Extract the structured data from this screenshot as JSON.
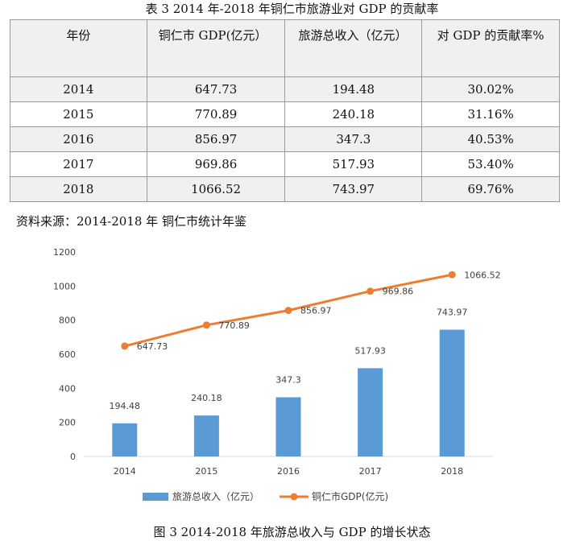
{
  "table": {
    "title": "表 3    2014 年-2018 年铜仁市旅游业对 GDP 的贡献率",
    "headers": [
      "年份",
      "铜仁市 GDP(亿元）",
      "旅游总收入（亿元）",
      "对 GDP 的贡献率%"
    ],
    "rows": [
      [
        "2014",
        "647.73",
        "194.48",
        "30.02%"
      ],
      [
        "2015",
        "770.89",
        "240.18",
        "31.16%"
      ],
      [
        "2016",
        "856.97",
        "347.3",
        "40.53%"
      ],
      [
        "2017",
        "969.86",
        "517.93",
        "53.40%"
      ],
      [
        "2018",
        "1066.52",
        "743.97",
        "69.76%"
      ]
    ],
    "source": "资料来源：2014-2018 年 铜仁市统计年鉴"
  },
  "chart_data": {
    "type": "bar",
    "categories": [
      "2014",
      "2015",
      "2016",
      "2017",
      "2018"
    ],
    "series": [
      {
        "name": "旅游总收入（亿元）",
        "type": "bar",
        "color": "#5b9bd5",
        "values": [
          194.48,
          240.18,
          347.3,
          517.93,
          743.97
        ],
        "labels": [
          "194.48",
          "240.18",
          "347.3",
          "517.93",
          "743.97"
        ]
      },
      {
        "name": "铜仁市GDP(亿元)",
        "type": "line",
        "color": "#ed7d31",
        "values": [
          647.73,
          770.89,
          856.97,
          969.86,
          1066.52
        ],
        "labels": [
          "647.73",
          "770.89",
          "856.97",
          "969.86",
          "1066.52"
        ]
      }
    ],
    "yticks": [
      "0",
      "200",
      "400",
      "600",
      "800",
      "1000",
      "1200"
    ],
    "ylim": [
      0,
      1200
    ],
    "grid": false,
    "legend": "bottom",
    "gridline_color": "#d9d9d9",
    "label_color": "#404040"
  },
  "caption": "图 3   2014-2018 年旅游总收入与 GDP 的增长状态"
}
